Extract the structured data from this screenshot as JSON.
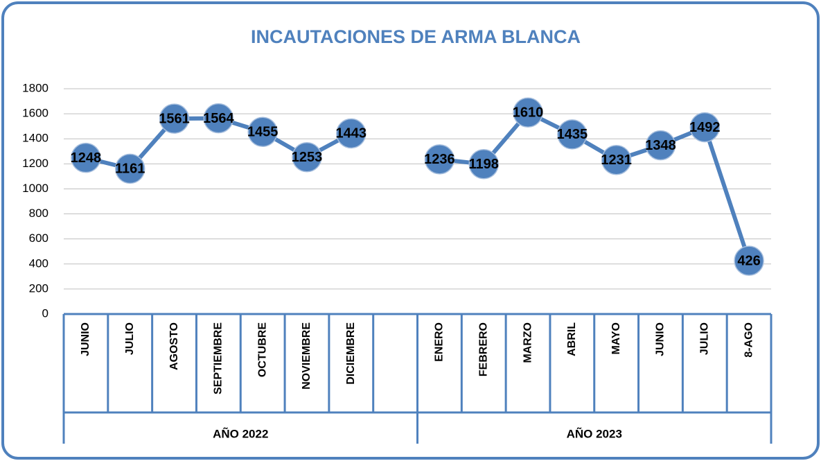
{
  "chart_data": {
    "type": "line",
    "title": "INCAUTACIONES DE ARMA BLANCA",
    "groups": [
      {
        "label": "AÑO 2022",
        "categories": [
          "JUNIO",
          "JULIO",
          "AGOSTO",
          "SEPTIEMBRE",
          "OCTUBRE",
          "NOVIEMBRE",
          "DICIEMBRE",
          null
        ]
      },
      {
        "label": "AÑO 2023",
        "categories": [
          "ENERO",
          "FEBRERO",
          "MARZO",
          "ABRIL",
          "MAYO",
          "JUNIO",
          "JULIO",
          "8-AGO"
        ]
      }
    ],
    "values": [
      1248,
      1161,
      1561,
      1564,
      1455,
      1253,
      1443,
      null,
      1236,
      1198,
      1610,
      1435,
      1231,
      1348,
      1492,
      426
    ],
    "color": "#4f81bd",
    "ylim": [
      0,
      1800
    ],
    "yticks": [
      0,
      200,
      400,
      600,
      800,
      1000,
      1200,
      1400,
      1600,
      1800
    ],
    "grid": true
  }
}
